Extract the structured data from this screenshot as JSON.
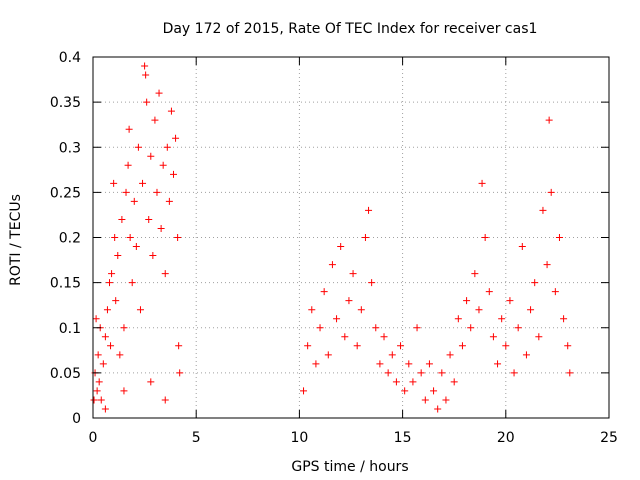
{
  "chart_data": {
    "type": "scatter",
    "title": "Day 172 of 2015, Rate Of TEC Index for receiver cas1",
    "xlabel": "GPS time / hours",
    "ylabel": "ROTI / TECUs",
    "xlim": [
      0,
      25
    ],
    "ylim": [
      0,
      0.4
    ],
    "xticks": [
      0,
      5,
      10,
      15,
      20,
      25
    ],
    "xtick_labels": [
      "0",
      "5",
      "10",
      "15",
      "20",
      "25"
    ],
    "yticks": [
      0,
      0.05,
      0.1,
      0.15,
      0.2,
      0.25,
      0.3,
      0.35,
      0.4
    ],
    "ytick_labels": [
      "0",
      "0.05",
      "0.1",
      "0.15",
      "0.2",
      "0.25",
      "0.3",
      "0.35",
      "0.4"
    ],
    "grid": true,
    "marker": "+",
    "series": [
      {
        "name": "cas1",
        "color": "#ff0000",
        "points": [
          [
            0.05,
            0.02
          ],
          [
            0.1,
            0.05
          ],
          [
            0.15,
            0.11
          ],
          [
            0.2,
            0.03
          ],
          [
            0.25,
            0.07
          ],
          [
            0.3,
            0.04
          ],
          [
            0.35,
            0.1
          ],
          [
            0.4,
            0.02
          ],
          [
            0.5,
            0.06
          ],
          [
            0.6,
            0.09
          ],
          [
            0.7,
            0.12
          ],
          [
            0.8,
            0.15
          ],
          [
            0.85,
            0.08
          ],
          [
            0.9,
            0.16
          ],
          [
            1.0,
            0.26
          ],
          [
            1.05,
            0.2
          ],
          [
            1.1,
            0.13
          ],
          [
            1.2,
            0.18
          ],
          [
            1.3,
            0.07
          ],
          [
            1.4,
            0.22
          ],
          [
            1.5,
            0.1
          ],
          [
            1.6,
            0.25
          ],
          [
            1.7,
            0.28
          ],
          [
            1.75,
            0.32
          ],
          [
            1.8,
            0.2
          ],
          [
            1.9,
            0.15
          ],
          [
            2.0,
            0.24
          ],
          [
            2.1,
            0.19
          ],
          [
            2.2,
            0.3
          ],
          [
            2.3,
            0.12
          ],
          [
            2.4,
            0.26
          ],
          [
            2.5,
            0.39
          ],
          [
            2.55,
            0.38
          ],
          [
            2.6,
            0.35
          ],
          [
            2.7,
            0.22
          ],
          [
            2.8,
            0.29
          ],
          [
            2.9,
            0.18
          ],
          [
            3.0,
            0.33
          ],
          [
            3.1,
            0.25
          ],
          [
            3.2,
            0.36
          ],
          [
            3.3,
            0.21
          ],
          [
            3.4,
            0.28
          ],
          [
            3.5,
            0.16
          ],
          [
            3.6,
            0.3
          ],
          [
            3.7,
            0.24
          ],
          [
            3.8,
            0.34
          ],
          [
            3.9,
            0.27
          ],
          [
            4.0,
            0.31
          ],
          [
            4.1,
            0.2
          ],
          [
            4.15,
            0.08
          ],
          [
            4.2,
            0.05
          ],
          [
            3.5,
            0.02
          ],
          [
            2.8,
            0.04
          ],
          [
            1.5,
            0.03
          ],
          [
            0.6,
            0.01
          ],
          [
            10.2,
            0.03
          ],
          [
            10.4,
            0.08
          ],
          [
            10.6,
            0.12
          ],
          [
            10.8,
            0.06
          ],
          [
            11.0,
            0.1
          ],
          [
            11.2,
            0.14
          ],
          [
            11.4,
            0.07
          ],
          [
            11.6,
            0.17
          ],
          [
            11.8,
            0.11
          ],
          [
            12.0,
            0.19
          ],
          [
            12.2,
            0.09
          ],
          [
            12.4,
            0.13
          ],
          [
            12.6,
            0.16
          ],
          [
            12.8,
            0.08
          ],
          [
            13.0,
            0.12
          ],
          [
            13.2,
            0.2
          ],
          [
            13.35,
            0.23
          ],
          [
            13.5,
            0.15
          ],
          [
            13.7,
            0.1
          ],
          [
            13.9,
            0.06
          ],
          [
            14.1,
            0.09
          ],
          [
            14.3,
            0.05
          ],
          [
            14.5,
            0.07
          ],
          [
            14.7,
            0.04
          ],
          [
            14.9,
            0.08
          ],
          [
            15.1,
            0.03
          ],
          [
            15.3,
            0.06
          ],
          [
            15.5,
            0.04
          ],
          [
            15.7,
            0.1
          ],
          [
            15.9,
            0.05
          ],
          [
            16.1,
            0.02
          ],
          [
            16.3,
            0.06
          ],
          [
            16.5,
            0.03
          ],
          [
            16.7,
            0.01
          ],
          [
            16.9,
            0.05
          ],
          [
            17.1,
            0.02
          ],
          [
            17.3,
            0.07
          ],
          [
            17.5,
            0.04
          ],
          [
            17.7,
            0.11
          ],
          [
            17.9,
            0.08
          ],
          [
            18.1,
            0.13
          ],
          [
            18.3,
            0.1
          ],
          [
            18.5,
            0.16
          ],
          [
            18.7,
            0.12
          ],
          [
            18.85,
            0.26
          ],
          [
            19.0,
            0.2
          ],
          [
            19.2,
            0.14
          ],
          [
            19.4,
            0.09
          ],
          [
            19.6,
            0.06
          ],
          [
            19.8,
            0.11
          ],
          [
            20.0,
            0.08
          ],
          [
            20.2,
            0.13
          ],
          [
            20.4,
            0.05
          ],
          [
            20.6,
            0.1
          ],
          [
            20.8,
            0.19
          ],
          [
            21.0,
            0.07
          ],
          [
            21.2,
            0.12
          ],
          [
            21.4,
            0.15
          ],
          [
            21.6,
            0.09
          ],
          [
            21.8,
            0.23
          ],
          [
            22.0,
            0.17
          ],
          [
            22.1,
            0.33
          ],
          [
            22.2,
            0.25
          ],
          [
            22.4,
            0.14
          ],
          [
            22.6,
            0.2
          ],
          [
            22.8,
            0.11
          ],
          [
            23.0,
            0.08
          ],
          [
            23.1,
            0.05
          ]
        ]
      }
    ]
  }
}
